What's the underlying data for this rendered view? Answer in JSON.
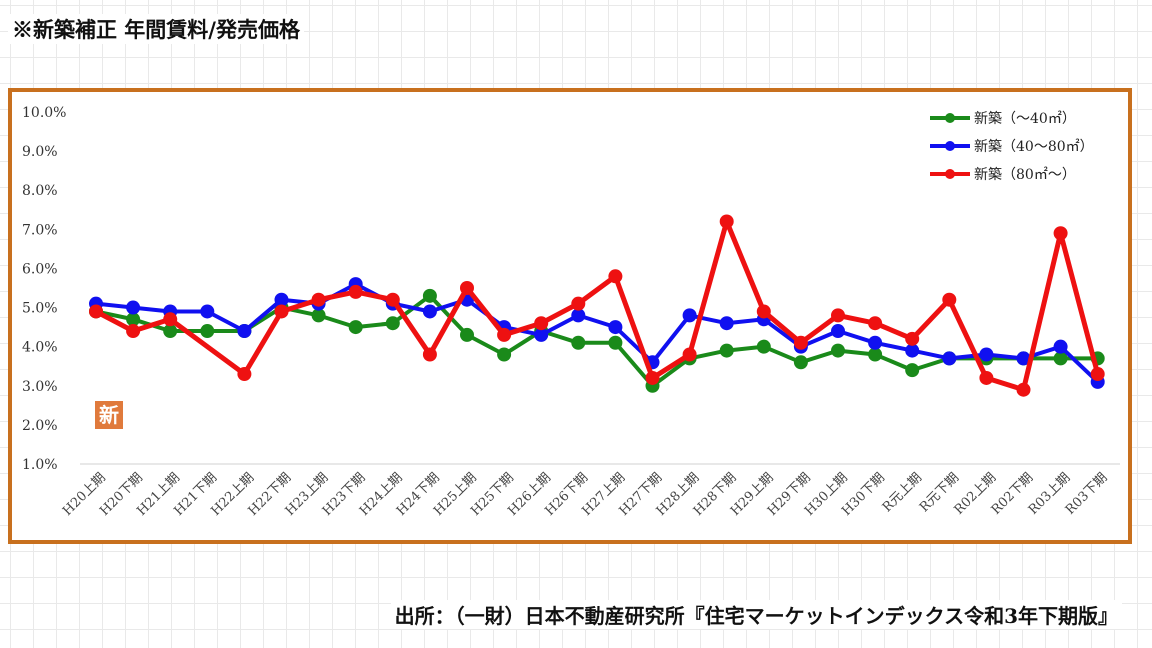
{
  "title": "※新築補正 年間賃料/発売価格",
  "source": "出所：（一財）日本不動産研究所『住宅マーケットインデックス令和3年下期版』",
  "badge": "新",
  "chart_data": {
    "type": "line",
    "categories": [
      "H20上期",
      "H20下期",
      "H21上期",
      "H21下期",
      "H22上期",
      "H22下期",
      "H23上期",
      "H23下期",
      "H24上期",
      "H24下期",
      "H25上期",
      "H25下期",
      "H26上期",
      "H26下期",
      "H27上期",
      "H27下期",
      "H28上期",
      "H28下期",
      "H29上期",
      "H29下期",
      "H30上期",
      "H30下期",
      "R元上期",
      "R元下期",
      "R02上期",
      "R02下期",
      "R03上期",
      "R03下期"
    ],
    "yticks": [
      "1.0%",
      "2.0%",
      "3.0%",
      "4.0%",
      "5.0%",
      "6.0%",
      "7.0%",
      "8.0%",
      "9.0%",
      "10.0%"
    ],
    "ylim": [
      1.0,
      10.0
    ],
    "grid": false,
    "legend_position": "top-right",
    "series": [
      {
        "name": "新築（～40㎡）",
        "color": "#1a8a1a",
        "values": [
          4.9,
          4.7,
          4.4,
          4.4,
          4.4,
          5.0,
          4.8,
          4.5,
          4.6,
          5.3,
          4.3,
          3.8,
          4.4,
          4.1,
          4.1,
          3.0,
          3.7,
          3.9,
          4.0,
          3.6,
          3.9,
          3.8,
          3.4,
          3.7,
          3.7,
          3.7,
          3.7,
          3.7
        ]
      },
      {
        "name": "新築（40～80㎡）",
        "color": "#1010f0",
        "values": [
          5.1,
          5.0,
          4.9,
          4.9,
          4.4,
          5.2,
          5.1,
          5.6,
          5.1,
          4.9,
          5.2,
          4.5,
          4.3,
          4.8,
          4.5,
          3.6,
          4.8,
          4.6,
          4.7,
          4.0,
          4.4,
          4.1,
          3.9,
          3.7,
          3.8,
          3.7,
          4.0,
          3.1
        ]
      },
      {
        "name": "新築（80㎡～）",
        "color": "#ee1111",
        "values": [
          4.9,
          4.4,
          4.7,
          null,
          3.3,
          4.9,
          5.2,
          5.4,
          5.2,
          3.8,
          5.5,
          4.3,
          4.6,
          5.1,
          5.8,
          3.2,
          3.8,
          7.2,
          4.9,
          4.1,
          4.8,
          4.6,
          4.2,
          5.2,
          3.2,
          2.9,
          6.9,
          3.3
        ]
      }
    ]
  }
}
